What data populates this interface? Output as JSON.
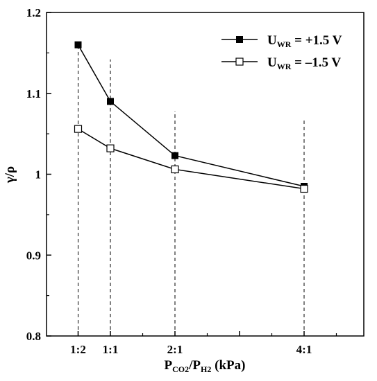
{
  "chart_data": {
    "type": "line",
    "categories": [
      "1:2",
      "1:1",
      "2:1",
      "4:1"
    ],
    "x": [
      0.5,
      1,
      2,
      4
    ],
    "ylim": [
      0.8,
      1.2
    ],
    "yticks": [
      "0.8",
      "0.9",
      "1",
      "1.1",
      "1.2"
    ],
    "xlabel": "P",
    "xlabel_sub1": "CO2",
    "xlabel_mid": "/P",
    "xlabel_sub2": "H2",
    "xlabel_tail": " (kPa)",
    "ylabel": "γ/ρ",
    "legend_position": "top-right",
    "grid": false,
    "series": [
      {
        "name_main": "U",
        "name_sub": "WR",
        "name_tail": " = +1.5 V",
        "marker": "filled-square",
        "color": "#000000",
        "values": [
          1.16,
          1.09,
          1.023,
          0.985
        ]
      },
      {
        "name_main": "U",
        "name_sub": "WR",
        "name_tail": " = –1.5 V",
        "marker": "open-square",
        "color": "#000000",
        "values": [
          1.056,
          1.032,
          1.006,
          0.982
        ]
      }
    ],
    "dashed_guides": [
      {
        "category": "1:2",
        "top": 1.158
      },
      {
        "category": "1:1",
        "top": 1.142
      },
      {
        "category": "2:1",
        "top": 1.078
      },
      {
        "category": "4:1",
        "top": 1.068
      }
    ]
  }
}
